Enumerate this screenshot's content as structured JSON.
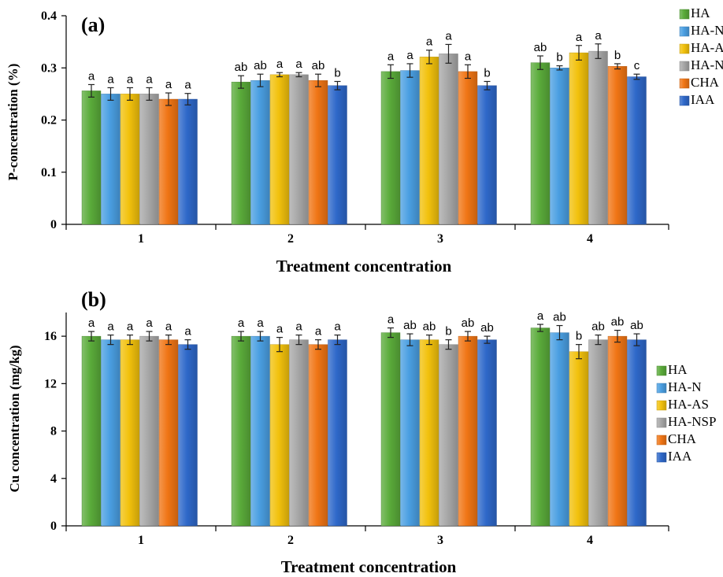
{
  "chart_data": [
    {
      "panel_label": "(a)",
      "type": "bar",
      "categories": [
        "1",
        "2",
        "3",
        "4"
      ],
      "ylim": [
        0,
        0.4
      ],
      "yticks": [
        "0",
        "0.1",
        "0.2",
        "0.3",
        "0.4"
      ],
      "xlabel": "Treatment concentration",
      "ylabel": "P-concentration (%)",
      "legend_position": "right",
      "grid": false,
      "series": [
        {
          "name": "HA",
          "color": "#5aab3a",
          "values": [
            0.256,
            0.273,
            0.293,
            0.31
          ],
          "errors": [
            0.012,
            0.012,
            0.013,
            0.013
          ],
          "letters": [
            "a",
            "ab",
            "a",
            "ab"
          ]
        },
        {
          "name": "HA-N",
          "color": "#4a9fe2",
          "values": [
            0.25,
            0.276,
            0.295,
            0.3
          ],
          "errors": [
            0.012,
            0.012,
            0.013,
            0.004
          ],
          "letters": [
            "a",
            "ab",
            "a",
            "b"
          ]
        },
        {
          "name": "HA-AS",
          "color": "#f2c10c",
          "values": [
            0.25,
            0.287,
            0.321,
            0.329
          ],
          "errors": [
            0.012,
            0.004,
            0.013,
            0.014
          ],
          "letters": [
            "a",
            "a",
            "a",
            "a"
          ]
        },
        {
          "name": "HA-NSP",
          "color": "#a7a7a7",
          "values": [
            0.25,
            0.287,
            0.327,
            0.332
          ],
          "errors": [
            0.012,
            0.004,
            0.018,
            0.014
          ],
          "letters": [
            "a",
            "a",
            "a",
            "a"
          ]
        },
        {
          "name": "CHA",
          "color": "#f07515",
          "values": [
            0.24,
            0.276,
            0.293,
            0.303
          ],
          "errors": [
            0.012,
            0.012,
            0.013,
            0.005
          ],
          "letters": [
            "a",
            "ab",
            "a",
            "b"
          ]
        },
        {
          "name": "IAA",
          "color": "#2e68c9",
          "values": [
            0.24,
            0.266,
            0.266,
            0.283
          ],
          "errors": [
            0.011,
            0.008,
            0.008,
            0.005
          ],
          "letters": [
            "a",
            "b",
            "b",
            "c"
          ]
        }
      ]
    },
    {
      "panel_label": "(b)",
      "type": "bar",
      "categories": [
        "1",
        "2",
        "3",
        "4"
      ],
      "ylim": [
        0,
        18
      ],
      "yticks": [
        "0",
        "4",
        "8",
        "12",
        "16"
      ],
      "xlabel": "Treatment concentration",
      "ylabel": "Cu concentration (mg/kg)",
      "legend_position": "right",
      "grid": false,
      "series": [
        {
          "name": "HA",
          "color": "#5aab3a",
          "values": [
            16.0,
            16.0,
            16.3,
            16.7
          ],
          "errors": [
            0.4,
            0.4,
            0.4,
            0.3
          ],
          "letters": [
            "a",
            "a",
            "a",
            "a"
          ]
        },
        {
          "name": "HA-N",
          "color": "#4a9fe2",
          "values": [
            15.7,
            16.0,
            15.7,
            16.3
          ],
          "errors": [
            0.4,
            0.4,
            0.5,
            0.6
          ],
          "letters": [
            "a",
            "a",
            "ab",
            "ab"
          ]
        },
        {
          "name": "HA-AS",
          "color": "#f2c10c",
          "values": [
            15.7,
            15.3,
            15.7,
            14.7
          ],
          "errors": [
            0.4,
            0.6,
            0.4,
            0.6
          ],
          "letters": [
            "a",
            "a",
            "ab",
            "b"
          ]
        },
        {
          "name": "HA-NSP",
          "color": "#a7a7a7",
          "values": [
            16.0,
            15.7,
            15.3,
            15.7
          ],
          "errors": [
            0.4,
            0.4,
            0.4,
            0.4
          ],
          "letters": [
            "a",
            "a",
            "b",
            "ab"
          ]
        },
        {
          "name": "CHA",
          "color": "#f07515",
          "values": [
            15.7,
            15.3,
            16.0,
            16.0
          ],
          "errors": [
            0.4,
            0.4,
            0.4,
            0.5
          ],
          "letters": [
            "a",
            "a",
            "ab",
            "ab"
          ]
        },
        {
          "name": "IAA",
          "color": "#2e68c9",
          "values": [
            15.3,
            15.7,
            15.7,
            15.7
          ],
          "errors": [
            0.4,
            0.4,
            0.3,
            0.5
          ],
          "letters": [
            "a",
            "a",
            "ab",
            "ab"
          ]
        }
      ]
    }
  ]
}
